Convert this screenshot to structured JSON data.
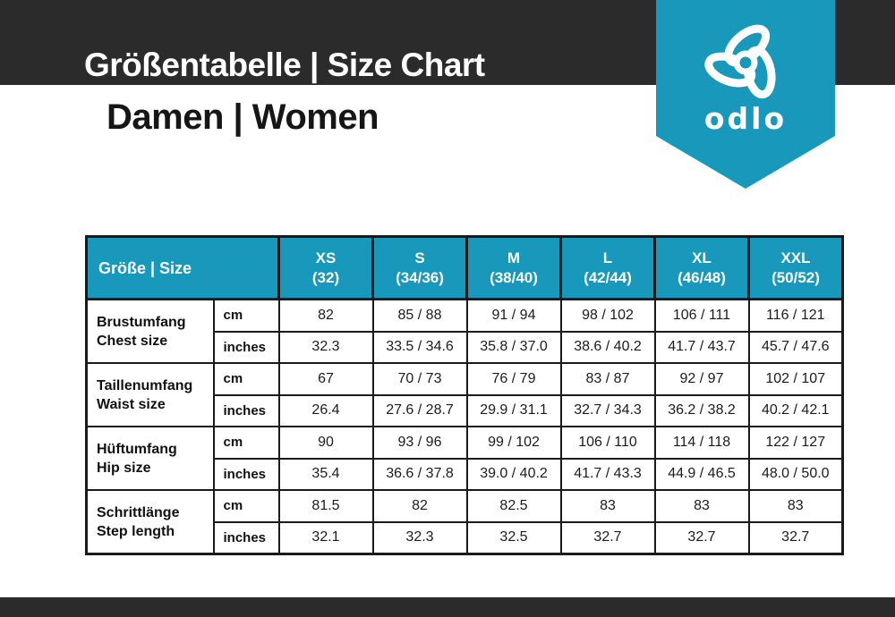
{
  "colors": {
    "accent": "#1898ba",
    "bar_dark": "#2b2b2b",
    "border_dark": "#1a1a1a",
    "text_dark": "#1c1c1c"
  },
  "header": {
    "title": "Größentabelle | Size Chart",
    "subtitle": "Damen | Women"
  },
  "brand": {
    "wordmark": "odlo",
    "logo_icon": "odlo-trefoil-icon"
  },
  "table": {
    "header": {
      "label": "Größe | Size",
      "sizes": [
        {
          "name": "XS",
          "range": "(32)"
        },
        {
          "name": "S",
          "range": "(34/36)"
        },
        {
          "name": "M",
          "range": "(38/40)"
        },
        {
          "name": "L",
          "range": "(42/44)"
        },
        {
          "name": "XL",
          "range": "(46/48)"
        },
        {
          "name": "XXL",
          "range": "(50/52)"
        }
      ]
    },
    "units": [
      "cm",
      "inches"
    ],
    "rows": [
      {
        "label_de": "Brustumfang",
        "label_en": "Chest size",
        "cm": [
          "82",
          "85 / 88",
          "91 / 94",
          "98 / 102",
          "106 / 111",
          "116 / 121"
        ],
        "inches": [
          "32.3",
          "33.5 / 34.6",
          "35.8 / 37.0",
          "38.6 / 40.2",
          "41.7 / 43.7",
          "45.7 / 47.6"
        ]
      },
      {
        "label_de": "Taillenumfang",
        "label_en": "Waist size",
        "cm": [
          "67",
          "70 / 73",
          "76 / 79",
          "83 / 87",
          "92 / 97",
          "102 / 107"
        ],
        "inches": [
          "26.4",
          "27.6 / 28.7",
          "29.9 / 31.1",
          "32.7 / 34.3",
          "36.2 / 38.2",
          "40.2 / 42.1"
        ]
      },
      {
        "label_de": "Hüftumfang",
        "label_en": "Hip size",
        "cm": [
          "90",
          "93 / 96",
          "99 / 102",
          "106 / 110",
          "114 / 118",
          "122 / 127"
        ],
        "inches": [
          "35.4",
          "36.6 / 37.8",
          "39.0 / 40.2",
          "41.7 / 43.3",
          "44.9 / 46.5",
          "48.0 / 50.0"
        ]
      },
      {
        "label_de": "Schrittlänge",
        "label_en": "Step length",
        "cm": [
          "81.5",
          "82",
          "82.5",
          "83",
          "83",
          "83"
        ],
        "inches": [
          "32.1",
          "32.3",
          "32.5",
          "32.7",
          "32.7",
          "32.7"
        ]
      }
    ]
  }
}
